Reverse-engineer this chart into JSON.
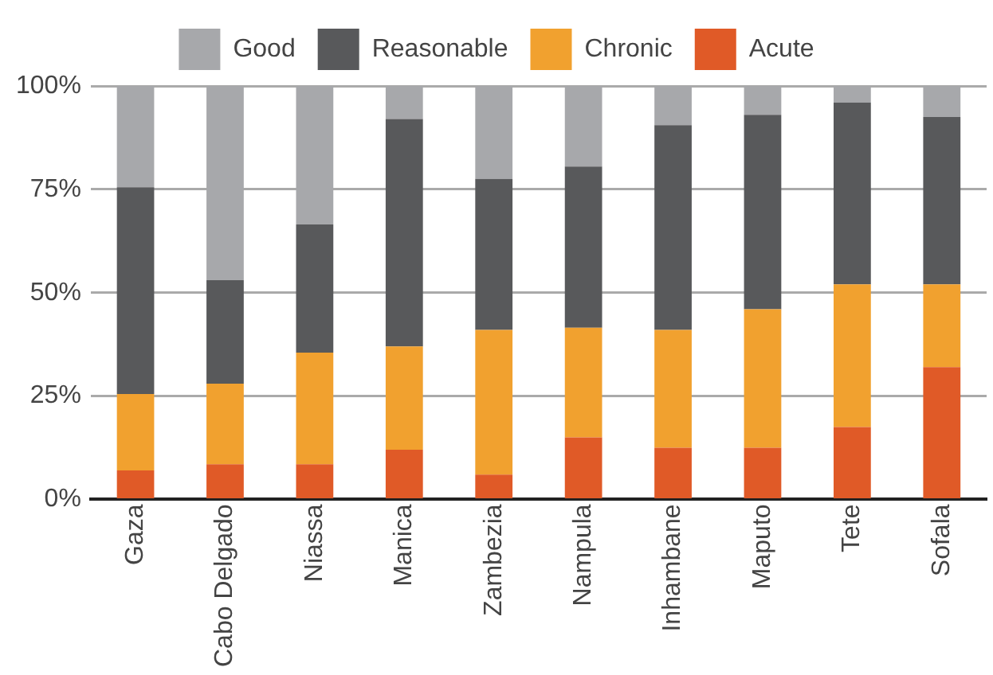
{
  "chart_data": {
    "type": "bar",
    "stacked": true,
    "legend": "top",
    "grid": "y",
    "categories": [
      "Gaza",
      "Cabo Delgado",
      "Niassa",
      "Manica",
      "Zambezia",
      "Nampula",
      "Inhambane",
      "Maputo",
      "Tete",
      "Sofala"
    ],
    "series": [
      {
        "name": "Acute",
        "color": "#e05a27",
        "values": [
          7,
          8.5,
          8.5,
          12,
          6,
          15,
          12.5,
          12.5,
          17.5,
          32
        ]
      },
      {
        "name": "Chronic",
        "color": "#f1a12f",
        "values": [
          18.5,
          19.5,
          27,
          25,
          35,
          26.5,
          28.5,
          33.5,
          34.5,
          20
        ]
      },
      {
        "name": "Reasonable",
        "color": "#58595b",
        "values": [
          50,
          25,
          31,
          55,
          36.5,
          39,
          49.5,
          47,
          44,
          40.5
        ]
      },
      {
        "name": "Good",
        "color": "#a7a8ab",
        "values": [
          24.5,
          47,
          33.5,
          8,
          22.5,
          19.5,
          9.5,
          7,
          4,
          7.5
        ]
      }
    ],
    "ylim": [
      0,
      100
    ],
    "yticks": [
      {
        "value": 0,
        "label": "0%"
      },
      {
        "value": 25,
        "label": "25%"
      },
      {
        "value": 50,
        "label": "50%"
      },
      {
        "value": 75,
        "label": "75%"
      },
      {
        "value": 100,
        "label": "100%"
      }
    ]
  }
}
